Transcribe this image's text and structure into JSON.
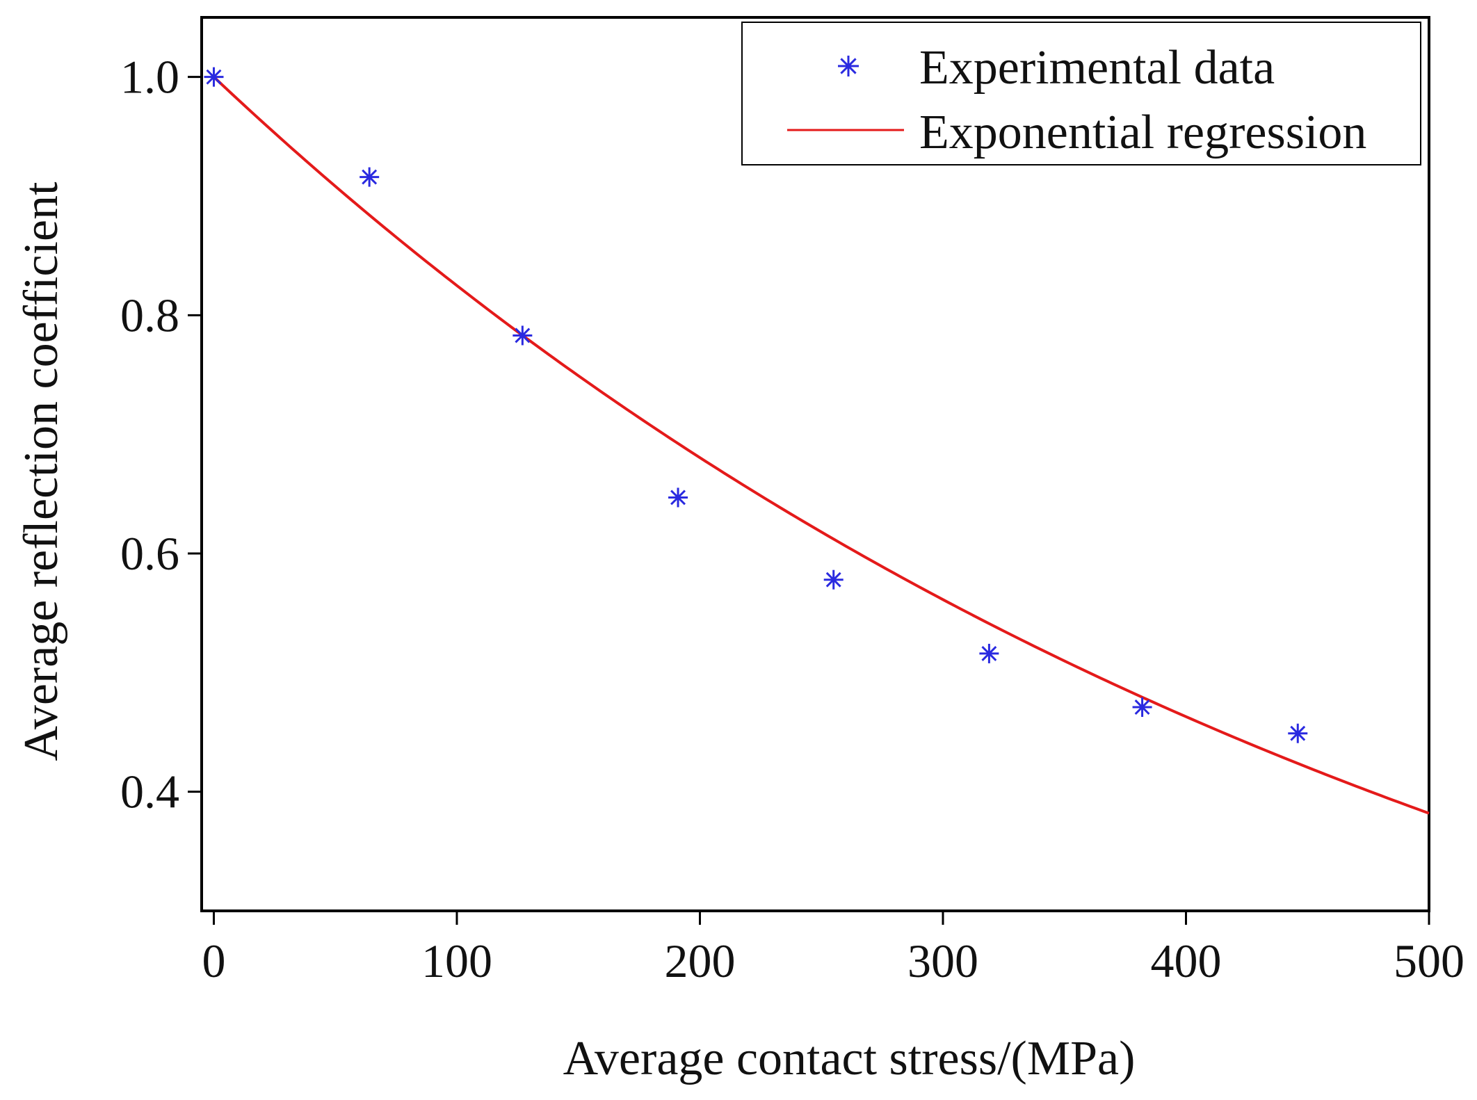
{
  "chart_data": {
    "type": "scatter",
    "xlabel": "Average contact stress/(MPa)",
    "ylabel": "Average reflection coefficient",
    "xlim": [
      -5,
      500
    ],
    "ylim": [
      0.3,
      1.05
    ],
    "x_ticks": [
      0,
      100,
      200,
      300,
      400,
      500
    ],
    "y_ticks": [
      0.4,
      0.6,
      0.8,
      1.0
    ],
    "x_tick_labels": [
      "0",
      "100",
      "200",
      "300",
      "400",
      "500"
    ],
    "y_tick_labels": [
      "0.4",
      "0.6",
      "0.8",
      "1.0"
    ],
    "grid": false,
    "legend_position": "top-right",
    "series": [
      {
        "name": "Experimental data",
        "kind": "scatter",
        "marker": "asterisk",
        "color": "#2a2ae0",
        "x": [
          0,
          64,
          127,
          191,
          255,
          319,
          382,
          446
        ],
        "y": [
          1.0,
          0.916,
          0.783,
          0.647,
          0.578,
          0.516,
          0.471,
          0.449
        ]
      },
      {
        "name": "Exponential regression",
        "kind": "line",
        "color": "#e41a1a",
        "model": {
          "form": "a*exp(b*x)",
          "a": 1.0,
          "b": -0.001925
        },
        "x_range": [
          0,
          500
        ]
      }
    ]
  }
}
